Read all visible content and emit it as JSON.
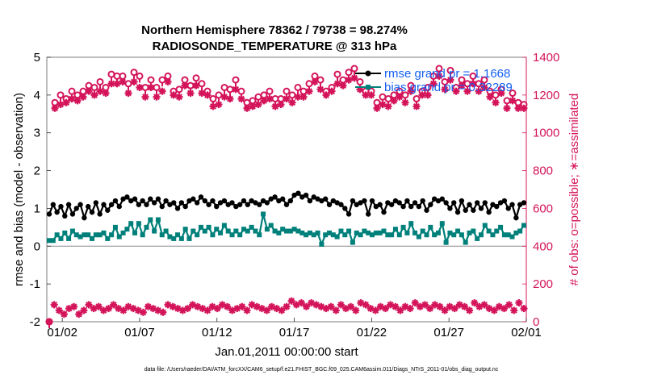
{
  "chart_data": {
    "type": "line",
    "title": "Northern Hemisphere 78362 / 79738 = 98.274%",
    "subtitle": "RADIOSONDE_TEMPERATURE @ 313 hPa",
    "xlabel": "Jan.01,2011 00:00:00 start",
    "ylabel": "rmse and bias (model - observation)",
    "y2label": "# of obs: o=possible; ∗=assimilated",
    "ylim": [
      -2,
      5
    ],
    "y2lim": [
      0,
      1400
    ],
    "yticks": [
      "-2",
      "-1",
      "0",
      "1",
      "2",
      "3",
      "4",
      "5"
    ],
    "y2ticks": [
      "0",
      "200",
      "400",
      "600",
      "800",
      "1000",
      "1200",
      "1400"
    ],
    "xtick_labels": [
      "01/02",
      "01/07",
      "01/12",
      "01/17",
      "01/22",
      "01/27",
      "02/01"
    ],
    "xtick_days": [
      1,
      6,
      11,
      16,
      21,
      26,
      31
    ],
    "xlim_days": [
      0,
      31
    ],
    "footnote": "data file: /Users/raeder/DAI/ATM_forcXX/CAM6_setup/f.e21.FHIST_BGC.f09_025.CAM6assim.011/Diags_NTrS_2011-01/obs_diag_output.nc",
    "colors": {
      "rmse": "#000000",
      "bias": "#00807a",
      "obs": "#d4145a",
      "legend_text": "#1560f0"
    },
    "series": [
      {
        "name": "rmse",
        "legend": "rmse grand pr = 1.1668",
        "marker": "circle",
        "values": [
          0.85,
          1.1,
          0.9,
          1.05,
          0.8,
          1.1,
          0.85,
          1.0,
          1.1,
          0.75,
          1.05,
          0.9,
          1.15,
          0.85,
          1.1,
          0.95,
          1.1,
          1.2,
          1.05,
          1.25,
          1.3,
          1.2,
          1.25,
          1.1,
          1.2,
          1.1,
          1.25,
          1.15,
          1.25,
          1.05,
          1.2,
          1.1,
          1.15,
          1.0,
          1.15,
          1.05,
          1.2,
          1.25,
          1.15,
          1.3,
          1.2,
          1.1,
          1.2,
          1.05,
          1.15,
          1.2,
          1.1,
          1.15,
          1.05,
          1.1,
          1.2,
          1.1,
          1.2,
          1.15,
          1.1,
          1.2,
          1.15,
          1.25,
          1.3,
          1.2,
          1.25,
          1.1,
          1.2,
          1.35,
          1.4,
          1.3,
          1.35,
          1.2,
          1.3,
          1.25,
          1.2,
          1.25,
          1.1,
          1.2,
          1.15,
          1.1,
          1.0,
          0.85,
          1.2,
          1.1,
          1.15,
          1.2,
          0.85,
          1.2,
          1.05,
          1.1,
          0.9,
          1.15,
          1.1,
          1.2,
          1.15,
          1.05,
          1.2,
          1.05,
          1.15,
          1.05,
          1.2,
          0.95,
          1.1,
          1.25,
          1.2,
          1.25,
          1.15,
          1.0,
          1.15,
          0.9,
          1.2,
          0.95,
          1.1,
          0.95,
          1.15,
          1.0,
          1.15,
          0.9,
          1.1,
          1.05,
          1.15,
          1.2,
          1.0,
          1.1,
          0.75,
          1.1,
          1.15
        ]
      },
      {
        "name": "bias",
        "legend": "bias grand pr = 0.32289",
        "marker": "square",
        "values": [
          0.15,
          0.15,
          0.3,
          0.2,
          0.35,
          0.2,
          0.4,
          0.3,
          0.25,
          0.3,
          0.3,
          0.2,
          0.3,
          0.3,
          0.35,
          0.2,
          0.3,
          0.5,
          0.25,
          0.35,
          0.45,
          0.6,
          0.35,
          0.6,
          0.3,
          0.5,
          0.7,
          0.4,
          0.7,
          0.3,
          0.4,
          0.25,
          0.2,
          0.3,
          0.2,
          0.45,
          0.2,
          0.4,
          0.3,
          0.5,
          0.4,
          0.5,
          0.3,
          0.45,
          0.35,
          0.55,
          0.4,
          0.3,
          0.4,
          0.3,
          0.45,
          0.4,
          0.5,
          0.4,
          0.3,
          0.85,
          0.45,
          0.55,
          0.4,
          0.35,
          0.45,
          0.4,
          0.4,
          0.45,
          0.4,
          0.35,
          0.3,
          0.35,
          0.3,
          0.35,
          0.05,
          0.3,
          0.35,
          0.3,
          0.25,
          0.4,
          0.3,
          0.4,
          0.1,
          0.35,
          0.3,
          0.4,
          0.35,
          0.3,
          0.35,
          0.35,
          0.4,
          0.3,
          0.3,
          0.45,
          0.3,
          0.5,
          0.35,
          0.6,
          0.35,
          0.25,
          0.4,
          0.3,
          0.5,
          0.3,
          0.35,
          0.6,
          0.1,
          0.35,
          0.3,
          0.4,
          0.3,
          0.1,
          0.35,
          0.4,
          0.2,
          0.3,
          0.55,
          0.4,
          0.3,
          0.4,
          0.5,
          0.3,
          0.3,
          0.25,
          0.35,
          0.4,
          0.55
        ]
      },
      {
        "name": "obs_possible",
        "marker": "circle-open",
        "axis": "right",
        "values": [
          0,
          1160,
          1200,
          1180,
          1220,
          1200,
          1220,
          1250,
          1240,
          1270,
          1240,
          1310,
          1300,
          1300,
          1260,
          1320,
          1300,
          1240,
          1280,
          1240,
          1280,
          1300,
          1220,
          1230,
          1280,
          1250,
          1290,
          1260,
          1220,
          1180,
          1200,
          1240,
          1230,
          1280,
          1220,
          1160,
          1170,
          1190,
          1200,
          1220,
          1180,
          1180,
          1220,
          1200,
          1240,
          1220,
          1260,
          1300,
          1280,
          1220,
          1240,
          1310,
          1280,
          1320,
          1340,
          1270,
          1220,
          1220,
          1160,
          1190,
          1180,
          1200,
          1220,
          1200,
          1250,
          1180,
          1220,
          1240,
          1300,
          1340,
          1270,
          1330,
          1240,
          1280,
          1260,
          1300,
          1260,
          1280,
          1220,
          1200,
          1230,
          1170,
          1210,
          1160,
          1150
        ]
      },
      {
        "name": "obs_assimilated",
        "marker": "asterisk",
        "axis": "right",
        "values": [
          0,
          1130,
          1150,
          1160,
          1180,
          1170,
          1190,
          1220,
          1200,
          1220,
          1210,
          1260,
          1260,
          1270,
          1210,
          1270,
          1240,
          1190,
          1240,
          1190,
          1220,
          1270,
          1200,
          1190,
          1250,
          1210,
          1250,
          1210,
          1200,
          1140,
          1150,
          1190,
          1180,
          1230,
          1180,
          1130,
          1140,
          1150,
          1170,
          1180,
          1140,
          1150,
          1180,
          1160,
          1190,
          1190,
          1220,
          1270,
          1230,
          1200,
          1220,
          1260,
          1250,
          1280,
          1290,
          1230,
          1200,
          1200,
          1130,
          1150,
          1140,
          1170,
          1190,
          1160,
          1220,
          1140,
          1200,
          1200,
          1260,
          1300,
          1230,
          1280,
          1220,
          1250,
          1220,
          1260,
          1220,
          1240,
          1190,
          1160,
          1210,
          1130,
          1170,
          1130,
          1130
        ]
      },
      {
        "name": "obs_bottom",
        "marker": "asterisk",
        "axis": "right",
        "values": [
          0,
          90,
          60,
          40,
          70,
          80,
          40,
          60,
          90,
          70,
          80,
          60,
          70,
          90,
          70,
          60,
          80,
          70,
          60,
          50,
          80,
          70,
          60,
          50,
          90,
          80,
          70,
          60,
          70,
          90,
          80,
          70,
          60,
          80,
          70,
          90,
          80,
          60,
          70,
          80,
          60,
          90,
          80,
          70,
          60,
          80,
          70,
          60,
          80,
          110,
          90,
          100,
          80,
          100,
          90,
          80,
          70,
          80,
          60,
          90,
          70,
          80,
          60,
          100,
          90,
          70,
          60,
          80,
          70,
          90,
          80,
          60,
          80,
          70,
          100,
          80,
          90,
          70,
          90,
          80,
          60,
          80,
          70,
          90,
          80,
          60,
          100,
          80,
          90,
          70,
          60,
          80,
          70,
          90,
          60,
          100,
          70
        ]
      }
    ]
  }
}
